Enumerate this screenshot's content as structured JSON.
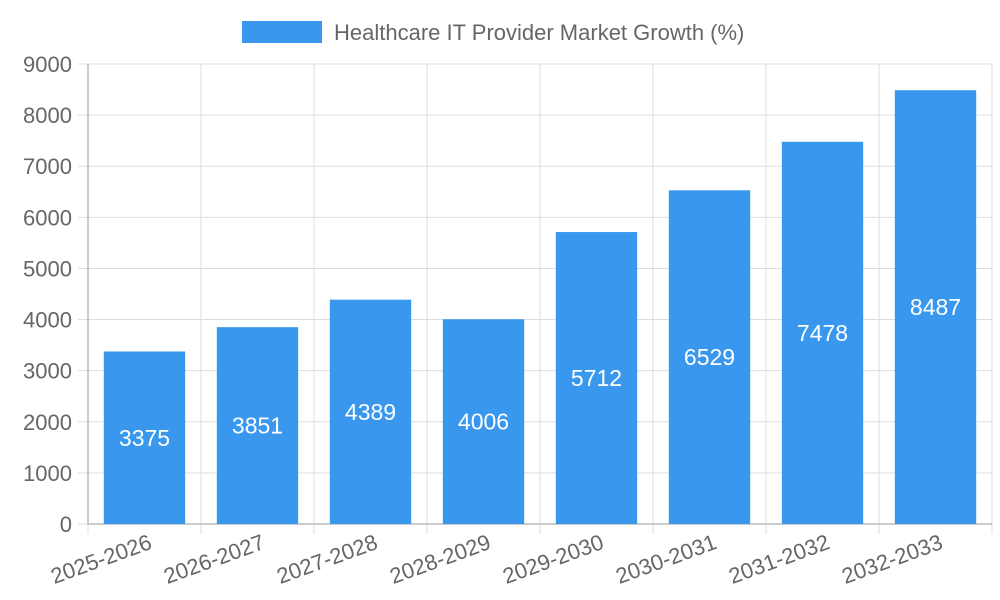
{
  "chart_data": {
    "type": "bar",
    "title": "",
    "xlabel": "",
    "ylabel": "",
    "legend_position": "top-center",
    "grid": true,
    "ylim": [
      0,
      9000
    ],
    "y_ticks": [
      0,
      1000,
      2000,
      3000,
      4000,
      5000,
      6000,
      7000,
      8000,
      9000
    ],
    "categories": [
      "2025-2026",
      "2026-2027",
      "2027-2028",
      "2028-2029",
      "2029-2030",
      "2030-2031",
      "2031-2032",
      "2032-2033"
    ],
    "series": [
      {
        "name": "Healthcare IT Provider Market Growth (%)",
        "values": [
          3375,
          3851,
          4389,
          4006,
          5712,
          6529,
          7478,
          8487
        ],
        "color": "#3998ee"
      }
    ],
    "data_labels": [
      "3375",
      "3851",
      "4389",
      "4006",
      "5712",
      "6529",
      "7478",
      "8487"
    ]
  }
}
